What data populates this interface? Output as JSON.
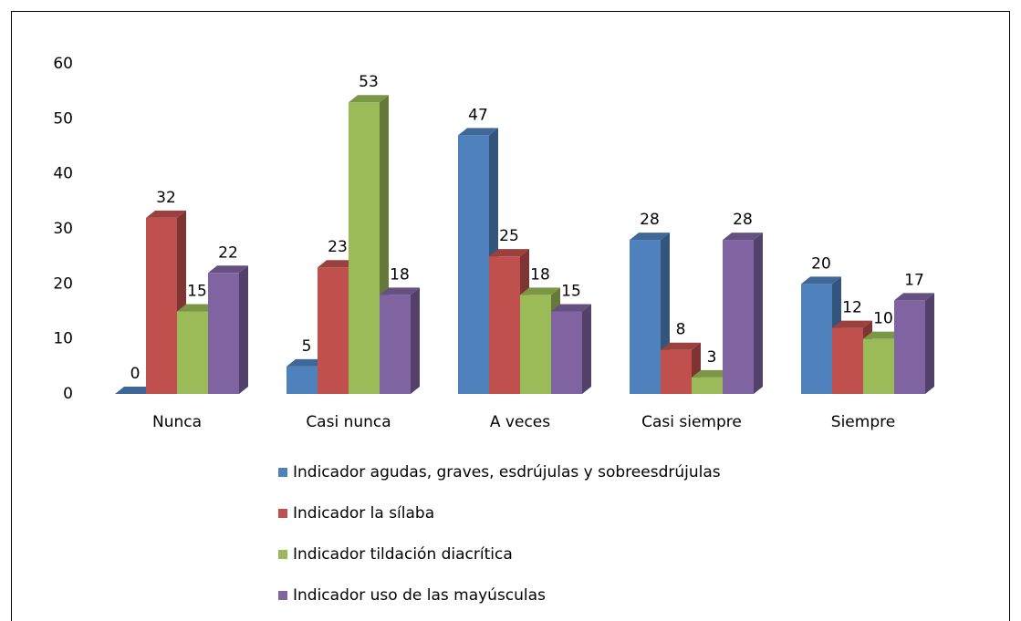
{
  "chart_data": {
    "type": "bar3d",
    "categories": [
      "Nunca",
      "Casi nunca",
      "A veces",
      "Casi siempre",
      "Siempre"
    ],
    "series": [
      {
        "name": "Indicador agudas, graves, esdrújulas y sobreesdrújulas",
        "color": "#4f81bd",
        "values": [
          0,
          5,
          47,
          28,
          20
        ]
      },
      {
        "name": "Indicador la sílaba",
        "color": "#c0504d",
        "values": [
          32,
          23,
          25,
          8,
          12
        ]
      },
      {
        "name": "Indicador tildación diacrítica",
        "color": "#9bbb59",
        "values": [
          15,
          53,
          18,
          3,
          10
        ]
      },
      {
        "name": "Indicador uso de las mayúsculas",
        "color": "#8064a2",
        "values": [
          22,
          18,
          15,
          28,
          17
        ]
      }
    ],
    "ylim": [
      0,
      60
    ],
    "yticks": [
      0,
      10,
      20,
      30,
      40,
      50,
      60
    ],
    "grid": false,
    "legend": "bottom"
  }
}
